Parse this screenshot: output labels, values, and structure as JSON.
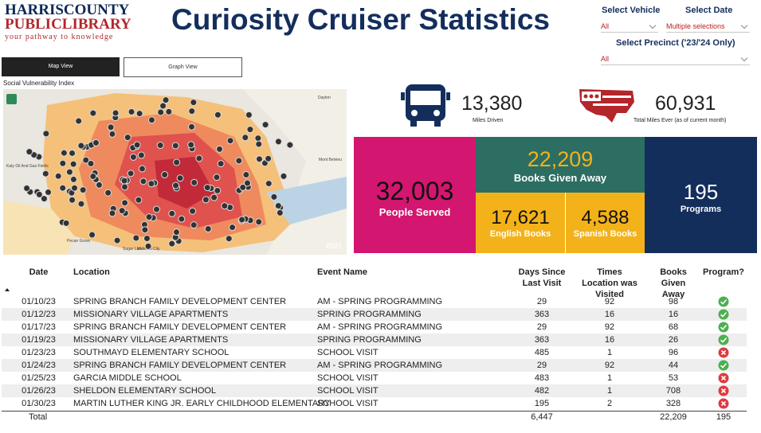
{
  "header": {
    "logo_line1": "HARRISCOUNTY",
    "logo_line2": "PUBLICLIBRARY",
    "tagline": "your pathway to knowledge",
    "title": "Curiosity Cruiser Statistics"
  },
  "filters": {
    "vehicle_label": "Select Vehicle",
    "vehicle_value": "All",
    "date_label": "Select Date",
    "date_value": "Multiple selections",
    "precinct_label": "Select Precinct ('23/'24 Only)",
    "precinct_value": "All"
  },
  "tabs": {
    "map": "Map View",
    "graph": "Graph View"
  },
  "map": {
    "title": "Social Vulnerability Index",
    "places": [
      "Dayton",
      "Mont Belvieu",
      "Katy Oil And Gas Fields",
      "Pecan Grove",
      "Sugar Land",
      "Missouri City",
      "esri"
    ]
  },
  "kpis": {
    "miles": "13,380",
    "miles_label": "Miles Driven",
    "total_miles": "60,931",
    "total_miles_label": "Total Miles Ever (as of current month)",
    "people": "32,003",
    "people_label": "People Served",
    "books": "22,209",
    "books_label": "Books Given Away",
    "english": "17,621",
    "english_label": "English Books",
    "spanish": "4,588",
    "spanish_label": "Spanish Books",
    "programs": "195",
    "programs_label": "Programs"
  },
  "table": {
    "headers": [
      "Date",
      "Location",
      "Event Name",
      "Days Since Last Visit",
      "Times Location was Visited",
      "Books Given Away",
      "Program?"
    ],
    "rows": [
      [
        "01/10/23",
        "SPRING BRANCH FAMILY DEVELOPMENT CENTER",
        "AM - SPRING PROGRAMMING",
        "29",
        "92",
        "98"
      ],
      [
        "01/12/23",
        "MISSIONARY VILLAGE APARTMENTS",
        "SPRING PROGRAMMING",
        "363",
        "16",
        "16"
      ],
      [
        "01/17/23",
        "SPRING BRANCH FAMILY DEVELOPMENT CENTER",
        "AM - SPRING PROGRAMMING",
        "29",
        "92",
        "68"
      ],
      [
        "01/19/23",
        "MISSIONARY VILLAGE APARTMENTS",
        "SPRING PROGRAMMING",
        "363",
        "16",
        "26"
      ],
      [
        "01/23/23",
        "SOUTHMAYD ELEMENTARY SCHOOL",
        "SCHOOL VISIT",
        "485",
        "1",
        "96"
      ],
      [
        "01/24/23",
        "SPRING BRANCH FAMILY DEVELOPMENT CENTER",
        "AM - SPRING PROGRAMMING",
        "29",
        "92",
        "44"
      ],
      [
        "01/25/23",
        "GARCIA MIDDLE SCHOOL",
        "SCHOOL VISIT",
        "483",
        "1",
        "53"
      ],
      [
        "01/26/23",
        "SHELDON ELEMENTARY SCHOOL",
        "SCHOOL VISIT",
        "482",
        "1",
        "708"
      ],
      [
        "01/30/23",
        "MARTIN LUTHER KING JR. EARLY CHILDHOOD ELEMENTARY",
        "SCHOOL VISIT",
        "195",
        "2",
        "328"
      ]
    ],
    "program": [
      true,
      true,
      true,
      true,
      false,
      true,
      false,
      false,
      false
    ],
    "total": {
      "label": "Total",
      "days": "6,447",
      "books": "22,209",
      "programs": "195"
    }
  }
}
